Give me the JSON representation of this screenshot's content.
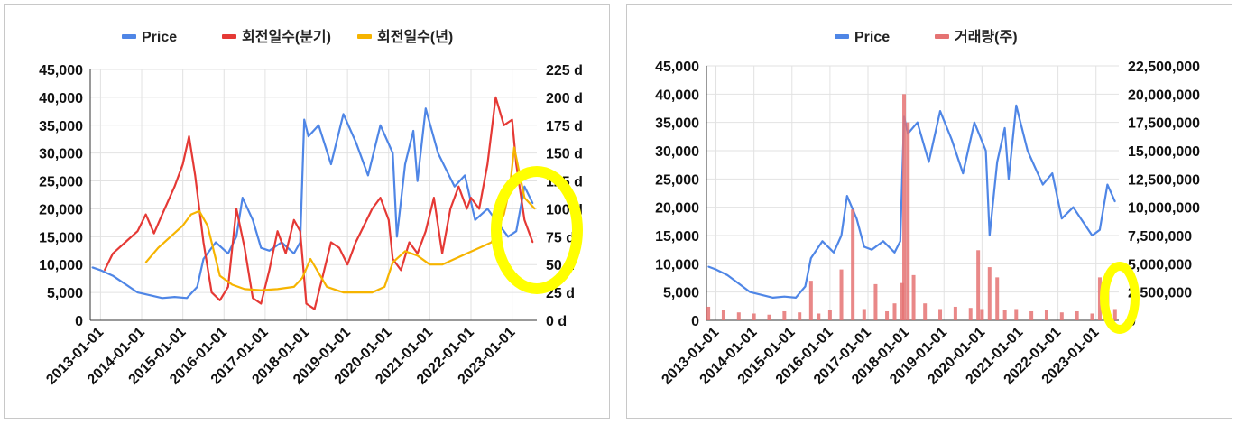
{
  "chart_data": [
    {
      "type": "line",
      "legend": [
        {
          "name": "Price",
          "color": "#4f86e6"
        },
        {
          "name": "회전일수(분기)",
          "color": "#e53935"
        },
        {
          "name": "회전일수(년)",
          "color": "#f6b400"
        }
      ],
      "legend_position": "top",
      "x_tick_labels": [
        "2013-01-01",
        "2014-01-01",
        "2015-01-01",
        "2016-01-01",
        "2017-01-01",
        "2018-01-01",
        "2019-01-01",
        "2020-01-01",
        "2021-01-01",
        "2022-01-01",
        "2023-01-01"
      ],
      "y_left_ticks": [
        "0",
        "5,000",
        "10,000",
        "15,000",
        "20,000",
        "25,000",
        "30,000",
        "35,000",
        "40,000",
        "45,000"
      ],
      "y_right_ticks": [
        "0 d",
        "25 d",
        "50 d",
        "75 d",
        "100 d",
        "125 d",
        "150 d",
        "175 d",
        "200 d",
        "225 d"
      ],
      "y_left_range": [
        0,
        45000
      ],
      "y_right_range": [
        0,
        225
      ],
      "grid": true,
      "series": [
        {
          "name": "Price",
          "axis": "left",
          "x": [
            2012.8,
            2013.0,
            2013.3,
            2013.6,
            2013.9,
            2014.2,
            2014.5,
            2014.8,
            2015.1,
            2015.35,
            2015.5,
            2015.8,
            2016.1,
            2016.3,
            2016.45,
            2016.7,
            2016.9,
            2017.1,
            2017.4,
            2017.7,
            2017.85,
            2017.95,
            2018.05,
            2018.3,
            2018.6,
            2018.9,
            2019.2,
            2019.5,
            2019.8,
            2020.1,
            2020.2,
            2020.4,
            2020.6,
            2020.7,
            2020.9,
            2021.2,
            2021.4,
            2021.6,
            2021.85,
            2022.1,
            2022.4,
            2022.7,
            2022.9,
            2023.1,
            2023.3,
            2023.5
          ],
          "values": [
            9500,
            9000,
            8000,
            6500,
            5000,
            4500,
            4000,
            4200,
            4000,
            6000,
            11000,
            14000,
            12000,
            15000,
            22000,
            18000,
            13000,
            12500,
            14000,
            12000,
            14000,
            36000,
            33000,
            35000,
            28000,
            37000,
            32000,
            26000,
            35000,
            30000,
            15000,
            28000,
            34000,
            25000,
            38000,
            30000,
            27000,
            24000,
            26000,
            18000,
            20000,
            17000,
            15000,
            16000,
            24000,
            21000
          ]
        },
        {
          "name": "회전일수(분기)",
          "axis": "right",
          "x": [
            2013.1,
            2013.3,
            2013.6,
            2013.9,
            2014.1,
            2014.3,
            2014.5,
            2014.8,
            2015.0,
            2015.15,
            2015.3,
            2015.5,
            2015.7,
            2015.9,
            2016.1,
            2016.3,
            2016.5,
            2016.7,
            2016.9,
            2017.1,
            2017.3,
            2017.5,
            2017.7,
            2017.85,
            2018.0,
            2018.2,
            2018.4,
            2018.6,
            2018.8,
            2019.0,
            2019.2,
            2019.4,
            2019.6,
            2019.8,
            2020.0,
            2020.1,
            2020.3,
            2020.5,
            2020.7,
            2020.9,
            2021.1,
            2021.3,
            2021.5,
            2021.7,
            2021.9,
            2022.0,
            2022.2,
            2022.4,
            2022.6,
            2022.8,
            2023.0,
            2023.1,
            2023.3,
            2023.5
          ],
          "values": [
            45,
            60,
            70,
            80,
            95,
            78,
            95,
            120,
            140,
            165,
            130,
            70,
            25,
            18,
            30,
            100,
            65,
            20,
            15,
            45,
            80,
            60,
            90,
            80,
            15,
            10,
            40,
            70,
            65,
            50,
            70,
            85,
            100,
            110,
            90,
            55,
            45,
            70,
            60,
            80,
            110,
            60,
            100,
            120,
            100,
            110,
            100,
            140,
            200,
            175,
            180,
            140,
            90,
            70
          ]
        },
        {
          "name": "회전일수(년)",
          "axis": "right",
          "x": [
            2014.1,
            2014.4,
            2014.7,
            2015.0,
            2015.2,
            2015.4,
            2015.6,
            2015.9,
            2016.2,
            2016.5,
            2016.9,
            2017.3,
            2017.7,
            2017.9,
            2018.1,
            2018.5,
            2018.9,
            2019.3,
            2019.6,
            2019.9,
            2020.1,
            2020.4,
            2020.7,
            2021.0,
            2021.3,
            2021.6,
            2021.9,
            2022.2,
            2022.5,
            2022.8,
            2022.95,
            2023.05,
            2023.3,
            2023.55
          ],
          "values": [
            52,
            65,
            75,
            85,
            95,
            98,
            85,
            40,
            32,
            28,
            27,
            28,
            30,
            38,
            55,
            30,
            25,
            25,
            25,
            30,
            52,
            62,
            58,
            50,
            50,
            55,
            60,
            65,
            70,
            95,
            120,
            155,
            110,
            100
          ]
        }
      ]
    },
    {
      "type": "bar",
      "legend": [
        {
          "name": "Price",
          "color": "#4f86e6"
        },
        {
          "name": "거래량(주)",
          "color": "#e57373"
        }
      ],
      "legend_position": "top",
      "x_tick_labels": [
        "2013-01-01",
        "2014-01-01",
        "2015-01-01",
        "2016-01-01",
        "2017-01-01",
        "2018-01-01",
        "2019-01-01",
        "2020-01-01",
        "2021-01-01",
        "2022-01-01",
        "2023-01-01"
      ],
      "y_left_ticks": [
        "0",
        "5,000",
        "10,000",
        "15,000",
        "20,000",
        "25,000",
        "30,000",
        "35,000",
        "40,000",
        "45,000"
      ],
      "y_right_ticks": [
        "0",
        "2,500,000",
        "5,000,000",
        "7,500,000",
        "10,000,000",
        "12,500,000",
        "15,000,000",
        "17,500,000",
        "20,000,000",
        "22,500,000"
      ],
      "y_left_range": [
        0,
        45000
      ],
      "y_right_range": [
        0,
        22500000
      ],
      "grid": true,
      "series": [
        {
          "name": "Price",
          "axis": "left",
          "x": [
            2012.8,
            2013.0,
            2013.3,
            2013.6,
            2013.9,
            2014.2,
            2014.5,
            2014.8,
            2015.1,
            2015.35,
            2015.5,
            2015.8,
            2016.1,
            2016.3,
            2016.45,
            2016.7,
            2016.9,
            2017.1,
            2017.4,
            2017.7,
            2017.85,
            2017.95,
            2018.05,
            2018.3,
            2018.6,
            2018.9,
            2019.2,
            2019.5,
            2019.8,
            2020.1,
            2020.2,
            2020.4,
            2020.6,
            2020.7,
            2020.9,
            2021.2,
            2021.4,
            2021.6,
            2021.85,
            2022.1,
            2022.4,
            2022.7,
            2022.9,
            2023.1,
            2023.3,
            2023.5
          ],
          "values": [
            9500,
            9000,
            8000,
            6500,
            5000,
            4500,
            4000,
            4200,
            4000,
            6000,
            11000,
            14000,
            12000,
            15000,
            22000,
            18000,
            13000,
            12500,
            14000,
            12000,
            14000,
            36000,
            33000,
            35000,
            28000,
            37000,
            32000,
            26000,
            35000,
            30000,
            15000,
            28000,
            34000,
            25000,
            38000,
            30000,
            27000,
            24000,
            26000,
            18000,
            20000,
            17000,
            15000,
            16000,
            24000,
            21000
          ]
        },
        {
          "name": "거래량(주)",
          "axis": "right",
          "x": [
            2012.8,
            2013.2,
            2013.6,
            2014.0,
            2014.4,
            2014.8,
            2015.2,
            2015.5,
            2015.7,
            2016.0,
            2016.3,
            2016.6,
            2016.9,
            2017.2,
            2017.5,
            2017.7,
            2017.9,
            2017.95,
            2018.05,
            2018.2,
            2018.5,
            2018.9,
            2019.3,
            2019.7,
            2019.9,
            2020.0,
            2020.2,
            2020.4,
            2020.6,
            2020.9,
            2021.3,
            2021.7,
            2022.1,
            2022.5,
            2022.9,
            2023.1,
            2023.3,
            2023.5
          ],
          "values": [
            1200000,
            900000,
            700000,
            600000,
            500000,
            800000,
            700000,
            3500000,
            600000,
            900000,
            4500000,
            9800000,
            1000000,
            3200000,
            800000,
            1500000,
            3300000,
            20000000,
            17500000,
            4000000,
            1500000,
            1000000,
            1200000,
            1100000,
            6200000,
            1000000,
            4700000,
            3800000,
            900000,
            1000000,
            800000,
            900000,
            700000,
            800000,
            600000,
            3800000,
            3600000,
            1000000
          ]
        }
      ]
    }
  ]
}
